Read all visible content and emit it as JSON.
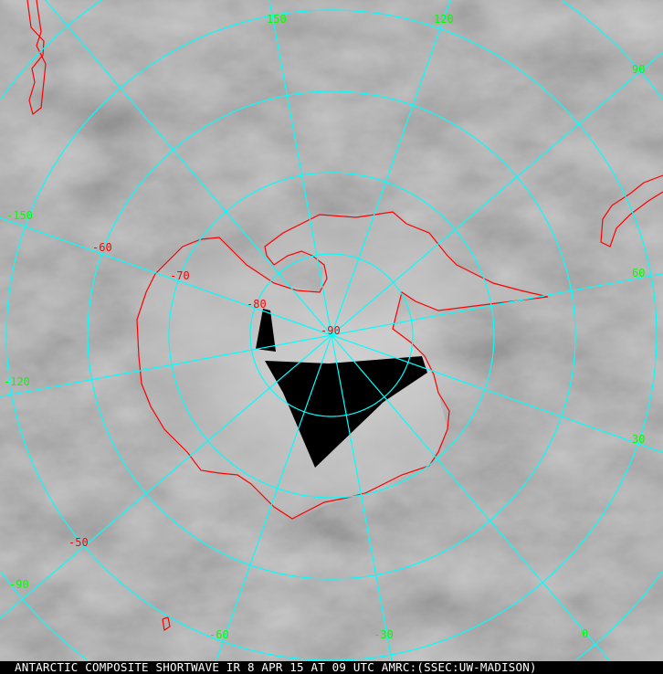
{
  "caption": "ANTARCTIC COMPOSITE SHORTWAVE IR 8 APR 15 AT 09 UTC AMRC:(SSEC:UW-MADISON)",
  "colors": {
    "graticule": "#00ffff",
    "coastline": "#ff0000",
    "longitude_labels": "#00ff00",
    "latitude_labels": "#ff0000",
    "background_imagery": "#7a7a7a",
    "data_gap": "#000000"
  },
  "latitude_labels": [
    "-50",
    "-60",
    "-70",
    "-80",
    "-90"
  ],
  "longitude_labels": [
    "150",
    "120",
    "90",
    "60",
    "30",
    "0",
    "-30",
    "-60",
    "-90",
    "-120",
    "-150"
  ]
}
